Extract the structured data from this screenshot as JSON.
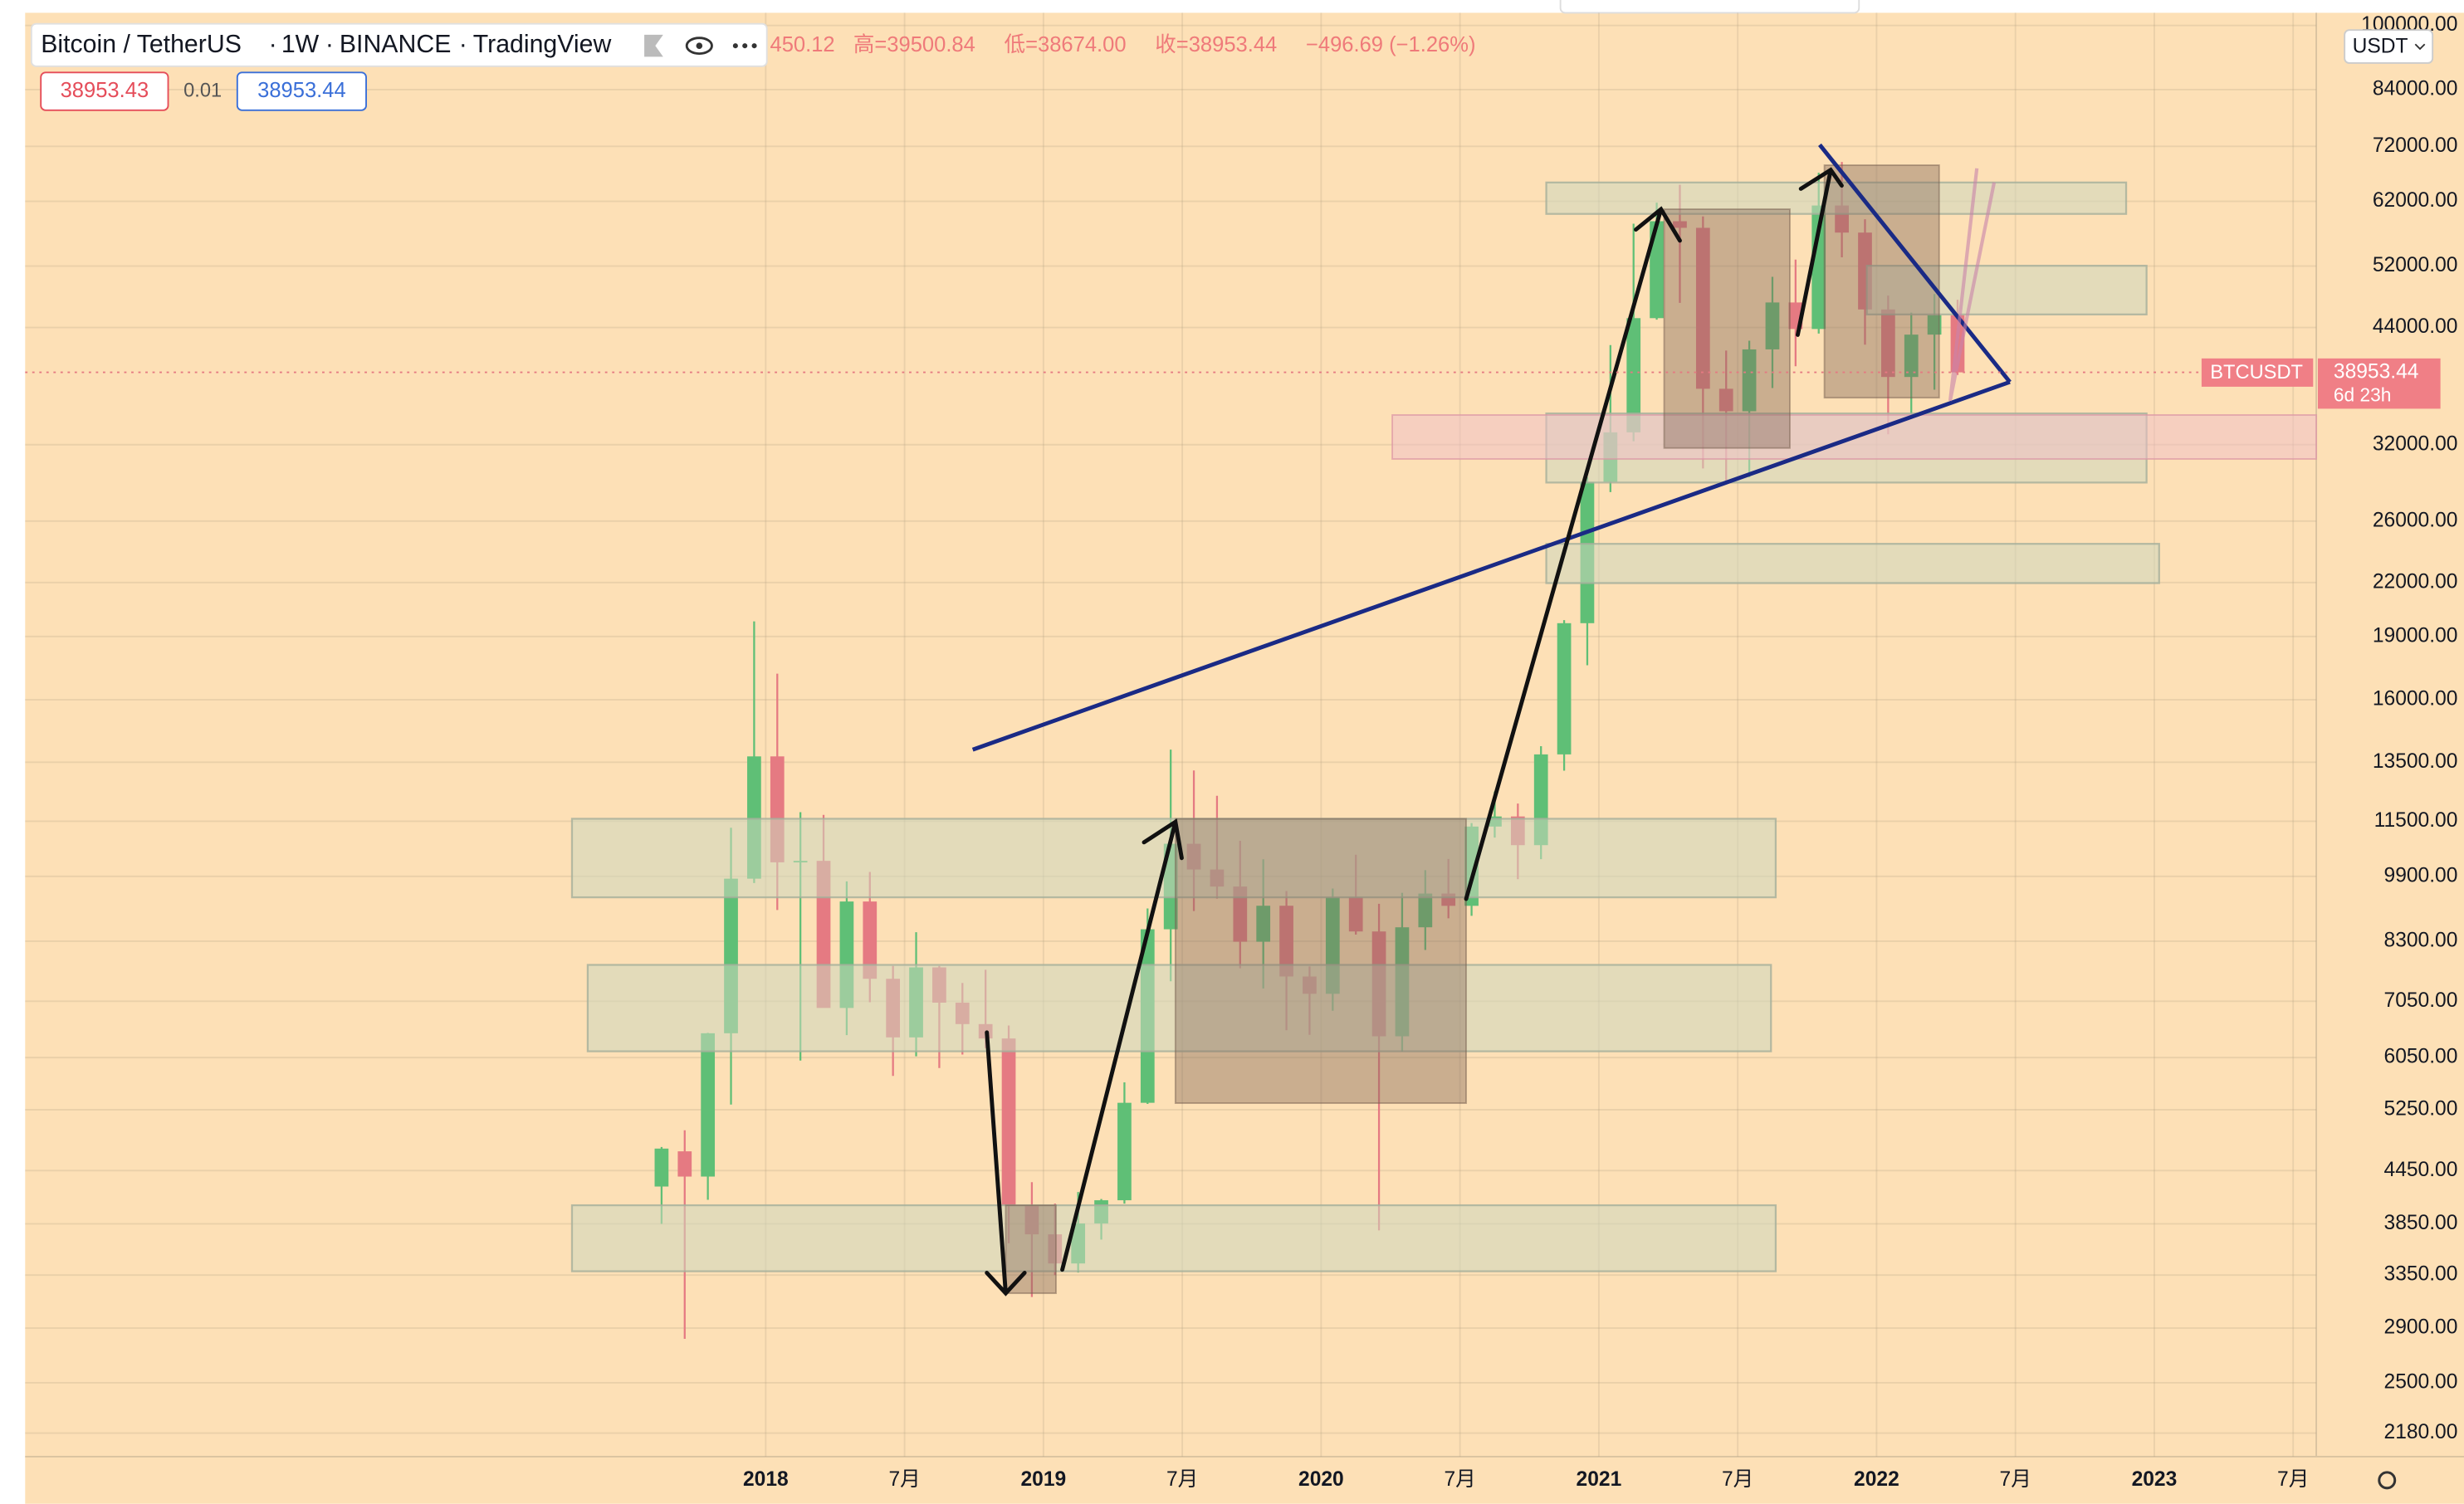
{
  "header": {
    "symbol": "Bitcoin / TetherUS",
    "interval": "1W",
    "exchange": "BINANCE",
    "source": "TradingView",
    "open_partial": "450.12",
    "high": "高=39500.84",
    "low": "低=38674.00",
    "close": "收=38953.44",
    "change": "−496.69 (−1.26%)",
    "bid": "38953.43",
    "spread": "0.01",
    "ask": "38953.44",
    "currency": "USDT"
  },
  "chart_data": {
    "type": "candlestick",
    "log_scale": true,
    "grid": true,
    "up_color": "#5fbf76",
    "down_color": "#e57a82",
    "x": [
      "2017-08",
      "2017-09",
      "2017-10",
      "2017-11",
      "2017-12",
      "2018-01",
      "2018-02",
      "2018-03",
      "2018-04",
      "2018-05",
      "2018-06",
      "2018-07",
      "2018-08",
      "2018-09",
      "2018-10",
      "2018-11",
      "2018-12",
      "2019-01",
      "2019-02",
      "2019-03",
      "2019-04",
      "2019-05",
      "2019-06",
      "2019-07",
      "2019-08",
      "2019-09",
      "2019-10",
      "2019-11",
      "2019-12",
      "2020-01",
      "2020-02",
      "2020-03",
      "2020-04",
      "2020-05",
      "2020-06",
      "2020-07",
      "2020-08",
      "2020-09",
      "2020-10",
      "2020-11",
      "2020-12",
      "2021-01",
      "2021-02",
      "2021-03",
      "2021-04",
      "2021-05",
      "2021-06",
      "2021-07",
      "2021-08",
      "2021-09",
      "2021-10",
      "2021-11",
      "2021-12",
      "2022-01",
      "2022-02",
      "2022-03",
      "2022-04"
    ],
    "ohlc": [
      [
        4261,
        4745,
        3850,
        4724
      ],
      [
        4689,
        4965,
        2817,
        4378
      ],
      [
        4378,
        6470,
        4110,
        6463
      ],
      [
        6463,
        11300,
        5325,
        9838
      ],
      [
        9838,
        19798,
        9722,
        13716
      ],
      [
        13716,
        17176,
        9035,
        10285
      ],
      [
        10285,
        11786,
        6000,
        10326
      ],
      [
        10326,
        11700,
        7051,
        6923
      ],
      [
        6923,
        9765,
        6430,
        9246
      ],
      [
        9246,
        10020,
        7032,
        7494
      ],
      [
        7494,
        7760,
        5755,
        6391
      ],
      [
        6391,
        8506,
        6070,
        7730
      ],
      [
        7730,
        7760,
        5880,
        7024
      ],
      [
        7024,
        7410,
        6100,
        6626
      ],
      [
        6626,
        7680,
        6205,
        6372
      ],
      [
        6372,
        6600,
        3652,
        4041
      ],
      [
        4041,
        4312,
        3156,
        3742
      ],
      [
        3742,
        4069,
        3349,
        3457
      ],
      [
        3457,
        4198,
        3373,
        3854
      ],
      [
        3854,
        4119,
        3689,
        4105
      ],
      [
        4105,
        5656,
        4067,
        5350
      ],
      [
        5350,
        9074,
        5333,
        8574
      ],
      [
        8574,
        13970,
        7444,
        10817
      ],
      [
        10817,
        13200,
        9010,
        10086
      ],
      [
        10086,
        12325,
        9320,
        9630
      ],
      [
        9630,
        10905,
        7710,
        8289
      ],
      [
        8289,
        10370,
        7300,
        9140
      ],
      [
        9140,
        9513,
        6515,
        7541
      ],
      [
        7541,
        7750,
        6435,
        7195
      ],
      [
        7195,
        9578,
        6871,
        9350
      ],
      [
        9350,
        10500,
        8450,
        8523
      ],
      [
        8523,
        9188,
        3782,
        6410
      ],
      [
        6410,
        9467,
        6150,
        8620
      ],
      [
        8620,
        10067,
        8105,
        9448
      ],
      [
        9448,
        10380,
        8833,
        9138
      ],
      [
        9138,
        11444,
        8893,
        11335
      ],
      [
        11335,
        12468,
        11000,
        11650
      ],
      [
        11650,
        12067,
        9825,
        10776
      ],
      [
        10776,
        14100,
        10374,
        13791
      ],
      [
        13791,
        19863,
        13195,
        19700
      ],
      [
        19700,
        29300,
        17572,
        28923
      ],
      [
        28923,
        41950,
        28130,
        33092
      ],
      [
        33092,
        58352,
        32296,
        45135
      ],
      [
        45135,
        61788,
        44950,
        58740
      ],
      [
        58740,
        64854,
        47044,
        57694
      ],
      [
        57694,
        59500,
        30000,
        37253
      ],
      [
        37253,
        41330,
        28805,
        35045
      ],
      [
        35045,
        42448,
        29278,
        41461
      ],
      [
        41461,
        50500,
        37332,
        47100
      ],
      [
        47100,
        52920,
        39600,
        43824
      ],
      [
        43824,
        67000,
        43283,
        61300
      ],
      [
        61300,
        69000,
        53256,
        56950
      ],
      [
        56950,
        59053,
        42000,
        46216
      ],
      [
        46216,
        47990,
        32917,
        38466
      ],
      [
        38466,
        45821,
        34322,
        43160
      ],
      [
        43160,
        48189,
        37155,
        45510
      ],
      [
        45510,
        47444,
        38674,
        38953.44
      ]
    ],
    "xlim": [
      "2015-05",
      "2023-08"
    ],
    "xticks": [
      {
        "value": "2018-01",
        "label": "2018"
      },
      {
        "value": "2018-07",
        "label": "7月"
      },
      {
        "value": "2019-01",
        "label": "2019"
      },
      {
        "value": "2019-07",
        "label": "7月"
      },
      {
        "value": "2020-01",
        "label": "2020"
      },
      {
        "value": "2020-07",
        "label": "7月"
      },
      {
        "value": "2021-01",
        "label": "2021"
      },
      {
        "value": "2021-07",
        "label": "7月"
      },
      {
        "value": "2022-01",
        "label": "2022"
      },
      {
        "value": "2022-07",
        "label": "7月"
      },
      {
        "value": "2023-01",
        "label": "2023"
      },
      {
        "value": "2023-07",
        "label": "7月"
      }
    ],
    "ylim": [
      2045,
      103500
    ],
    "yticks": [
      {
        "value": 100000,
        "label": "100000.00"
      },
      {
        "value": 84000,
        "label": "84000.00"
      },
      {
        "value": 72000,
        "label": "72000.00"
      },
      {
        "value": 62000,
        "label": "62000.00"
      },
      {
        "value": 52000,
        "label": "52000.00"
      },
      {
        "value": 44000,
        "label": "44000.00"
      },
      {
        "value": 32000,
        "label": "32000.00"
      },
      {
        "value": 26000,
        "label": "26000.00"
      },
      {
        "value": 22000,
        "label": "22000.00"
      },
      {
        "value": 19000,
        "label": "19000.00"
      },
      {
        "value": 16000,
        "label": "16000.00"
      },
      {
        "value": 13500,
        "label": "13500.00"
      },
      {
        "value": 11500,
        "label": "11500.00"
      },
      {
        "value": 9900,
        "label": "9900.00"
      },
      {
        "value": 8300,
        "label": "8300.00"
      },
      {
        "value": 7050,
        "label": "7050.00"
      },
      {
        "value": 6050,
        "label": "6050.00"
      },
      {
        "value": 5250,
        "label": "5250.00"
      },
      {
        "value": 4450,
        "label": "4450.00"
      },
      {
        "value": 3850,
        "label": "3850.00"
      },
      {
        "value": 3350,
        "label": "3350.00"
      },
      {
        "value": 2900,
        "label": "2900.00"
      },
      {
        "value": 2500,
        "label": "2500.00"
      },
      {
        "value": 2180,
        "label": "2180.00"
      }
    ],
    "last_price": 38953.44,
    "last_symbol": "BTCUSDT",
    "countdown": "6d 23h"
  }
}
